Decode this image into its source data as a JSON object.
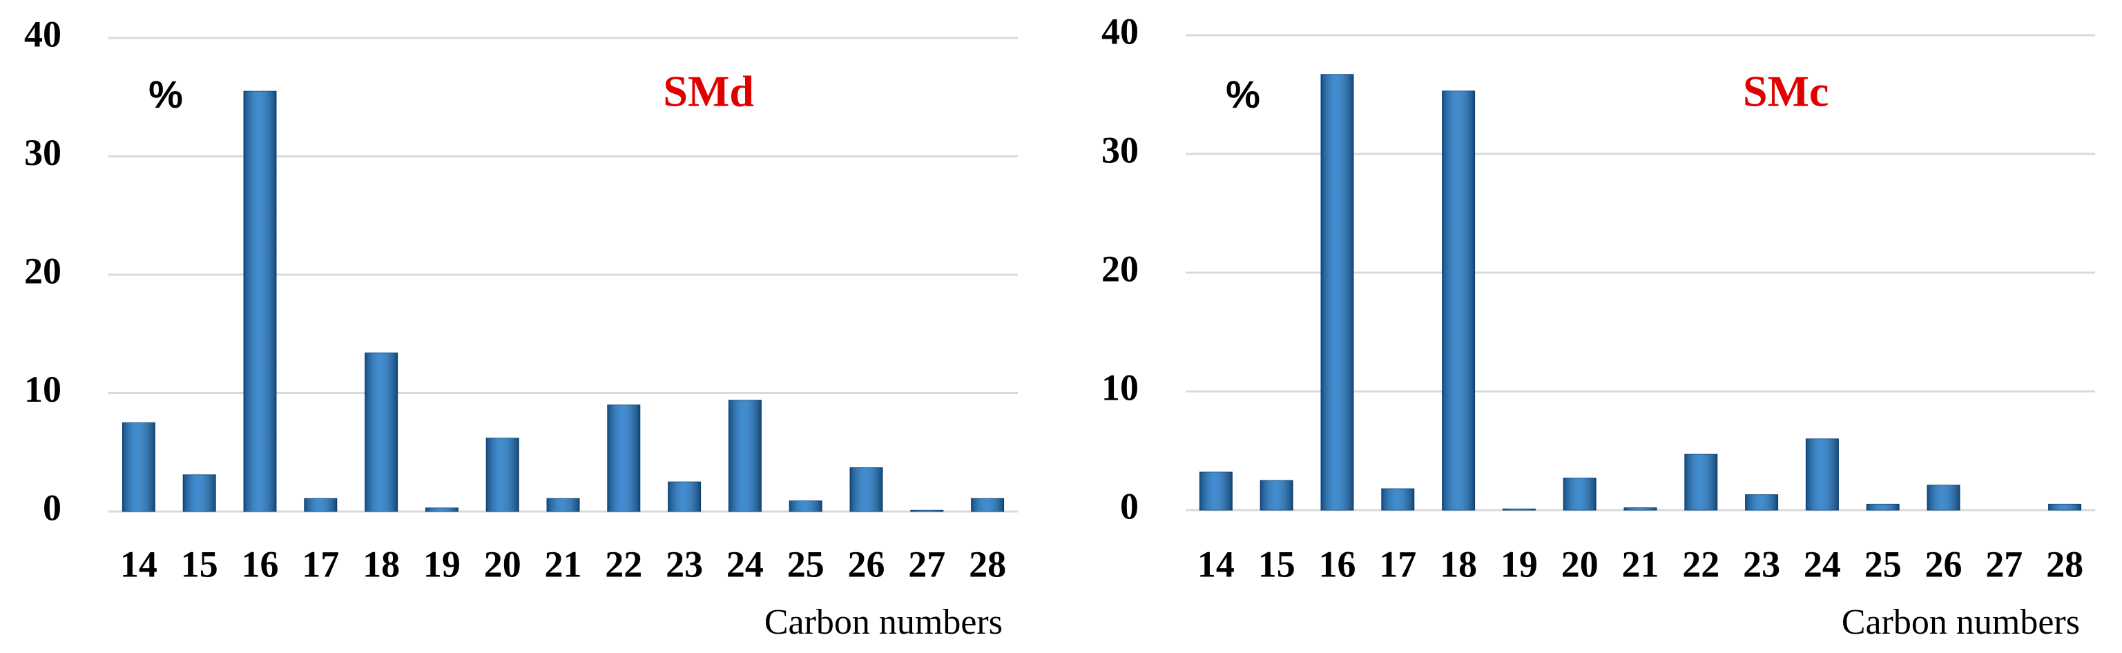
{
  "chart_data": [
    {
      "type": "bar",
      "title": "SMd",
      "y_label": "%",
      "x_label": "Carbon numbers",
      "categories": [
        "14",
        "15",
        "16",
        "17",
        "18",
        "19",
        "20",
        "21",
        "22",
        "23",
        "24",
        "25",
        "26",
        "27",
        "28"
      ],
      "values": [
        7.5,
        3.1,
        35.5,
        1.1,
        13.4,
        0.3,
        6.2,
        1.1,
        9.0,
        2.5,
        9.4,
        0.9,
        3.7,
        0.1,
        1.1
      ],
      "color": "#1f78c8",
      "ylim": [
        0,
        40
      ],
      "yticks": [
        0,
        10,
        20,
        30,
        40
      ],
      "grid": true
    },
    {
      "type": "bar",
      "title": "SMc",
      "y_label": "%",
      "x_label": "Carbon numbers",
      "categories": [
        "14",
        "15",
        "16",
        "17",
        "18",
        "19",
        "20",
        "21",
        "22",
        "23",
        "24",
        "25",
        "26",
        "27",
        "28"
      ],
      "values": [
        3.2,
        2.5,
        36.7,
        1.8,
        35.3,
        0.1,
        2.7,
        0.2,
        4.7,
        1.3,
        6.0,
        0.5,
        2.1,
        0,
        0.5
      ],
      "color": "#1f78c8",
      "ylim": [
        0,
        40
      ],
      "yticks": [
        0,
        10,
        20,
        30,
        40
      ],
      "grid": true
    }
  ]
}
